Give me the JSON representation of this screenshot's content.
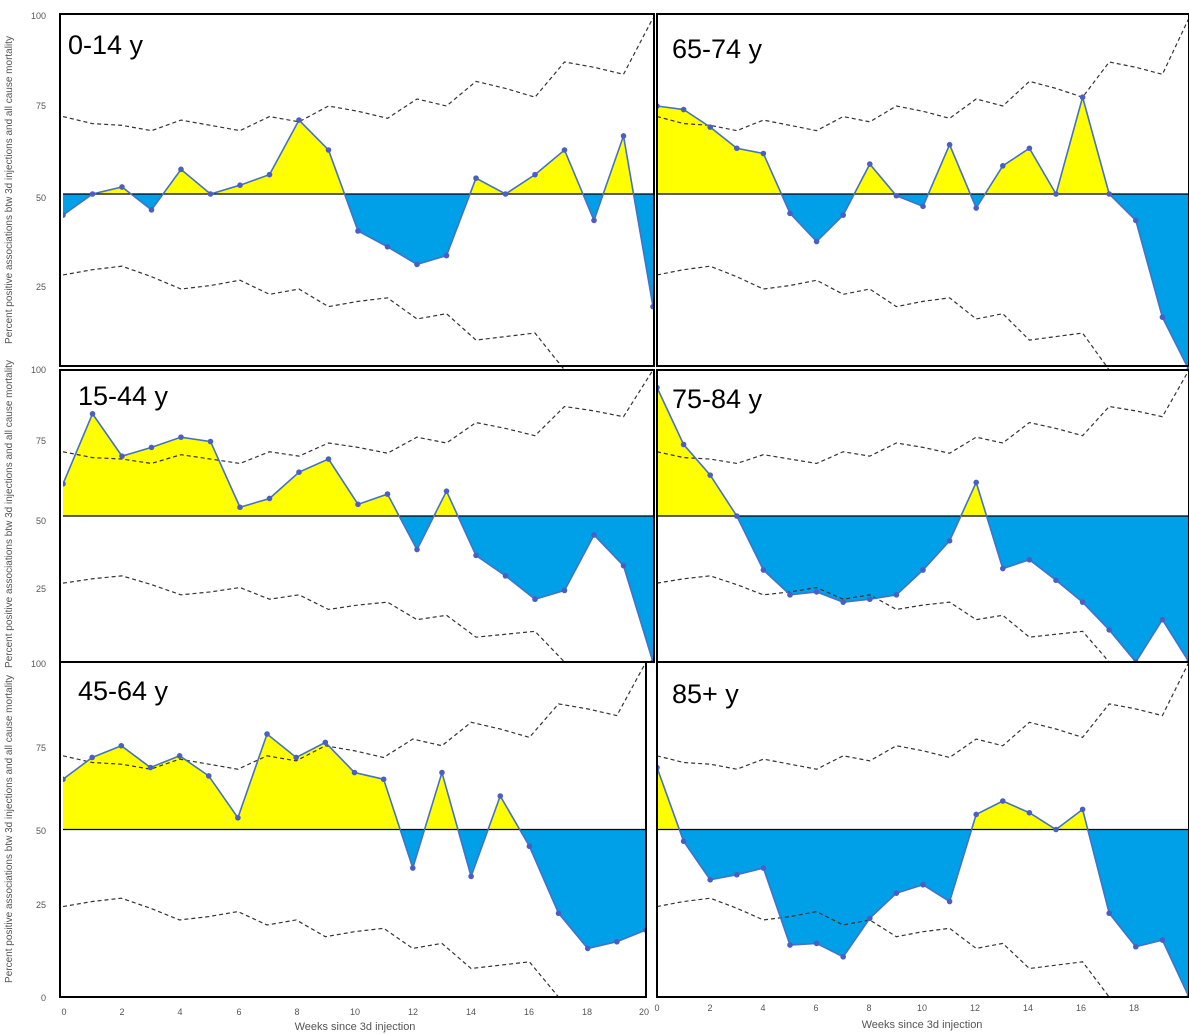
{
  "chart_data": {
    "type": "area",
    "ylabel": "Percent positive associations btw 3d injections and all cause mortality",
    "xlabel": "Weeks since 3d injection",
    "y_ticks": [
      "100",
      "75",
      "50",
      "25",
      "0"
    ],
    "x_ticks": [
      "0",
      "2",
      "4",
      "6",
      "8",
      "10",
      "12",
      "14",
      "16",
      "18",
      "20"
    ],
    "ylim": [
      0,
      100
    ],
    "xlim": [
      0,
      20
    ],
    "reference_line": 50,
    "colors": {
      "above": "#ffff00",
      "below": "#00a0e9",
      "line": "#4472c4",
      "point": "#4a5fc1",
      "band": "#333333",
      "frame": "#000000"
    },
    "confidence_band": {
      "upper": [
        [
          0,
          72
        ],
        [
          1,
          70
        ],
        [
          2,
          69.5
        ],
        [
          3,
          68
        ],
        [
          4,
          71
        ],
        [
          5,
          69.5
        ],
        [
          6,
          68
        ],
        [
          7,
          72
        ],
        [
          8,
          70.5
        ],
        [
          9,
          75
        ],
        [
          10,
          73.5
        ],
        [
          11,
          71.5
        ],
        [
          12,
          77
        ],
        [
          13,
          75
        ],
        [
          14,
          82
        ],
        [
          15,
          80
        ],
        [
          16,
          77.5
        ],
        [
          17,
          87.5
        ],
        [
          18,
          86
        ],
        [
          19,
          84
        ],
        [
          20,
          100
        ]
      ],
      "lower": [
        [
          0,
          27
        ],
        [
          1,
          28.5
        ],
        [
          2,
          29.5
        ],
        [
          3,
          26.5
        ],
        [
          4,
          23
        ],
        [
          5,
          24
        ],
        [
          6,
          25.5
        ],
        [
          7,
          21.5
        ],
        [
          8,
          23
        ],
        [
          9,
          18
        ],
        [
          10,
          19.5
        ],
        [
          11,
          20.5
        ],
        [
          12,
          14.5
        ],
        [
          13,
          16
        ],
        [
          14,
          8.5
        ],
        [
          15,
          9.5
        ],
        [
          16,
          10.5
        ],
        [
          17,
          0
        ],
        [
          18,
          0
        ],
        [
          19,
          0
        ],
        [
          20,
          0
        ]
      ]
    },
    "panels": [
      {
        "label": "0-14 y",
        "x": [
          0,
          1,
          2,
          3,
          4,
          5,
          6,
          7,
          8,
          9,
          10,
          11,
          12,
          13,
          14,
          15,
          16,
          17,
          18,
          19,
          20
        ],
        "y": [
          44,
          50,
          52,
          45.5,
          57,
          50,
          52.5,
          55.5,
          71,
          62.5,
          39.5,
          35,
          30,
          32.5,
          54.5,
          50,
          55.5,
          62.5,
          42.5,
          66.5,
          18
        ]
      },
      {
        "label": "65-74 y",
        "x": [
          0,
          1,
          2,
          3,
          4,
          5,
          6,
          7,
          8,
          9,
          10,
          11,
          12,
          13,
          14,
          15,
          16,
          17,
          18,
          19,
          20
        ],
        "y": [
          75,
          74,
          69,
          63,
          61.5,
          44.5,
          36.5,
          44,
          58.5,
          49.5,
          46.5,
          64,
          46,
          58,
          63,
          50,
          77.5,
          50,
          42.5,
          15,
          0
        ]
      },
      {
        "label": "15-44 y",
        "x": [
          0,
          1,
          2,
          3,
          4,
          5,
          6,
          7,
          8,
          9,
          10,
          11,
          12,
          13,
          14,
          15,
          16,
          17,
          18,
          19,
          20
        ],
        "y": [
          61,
          85,
          70.5,
          73.5,
          77,
          75.5,
          53,
          56,
          65,
          69.5,
          54,
          57.5,
          38.5,
          58.5,
          36.5,
          29.5,
          21.5,
          24.5,
          43.5,
          33,
          0
        ]
      },
      {
        "label": "75-84 y",
        "x": [
          0,
          1,
          2,
          3,
          4,
          5,
          6,
          7,
          8,
          9,
          10,
          11,
          12,
          13,
          14,
          15,
          16,
          17,
          18,
          19,
          20
        ],
        "y": [
          94,
          74.5,
          64,
          50,
          31.5,
          23,
          24,
          20.5,
          21.5,
          23,
          31.5,
          41.5,
          61.5,
          32,
          35,
          28,
          20.5,
          11,
          0,
          14.5,
          0
        ]
      },
      {
        "label": "45-64 y",
        "x": [
          0,
          1,
          2,
          3,
          4,
          5,
          6,
          7,
          8,
          9,
          10,
          11,
          12,
          13,
          14,
          15,
          16,
          17,
          18,
          19,
          20
        ],
        "y": [
          65,
          71.5,
          75,
          68.5,
          72,
          66,
          53.5,
          78.5,
          71.5,
          76,
          67,
          65,
          38.5,
          67,
          36,
          60,
          45,
          25,
          14.5,
          16.5,
          20
        ]
      },
      {
        "label": "85+ y",
        "x": [
          0,
          1,
          2,
          3,
          4,
          5,
          6,
          7,
          8,
          9,
          10,
          11,
          12,
          13,
          14,
          15,
          16,
          17,
          18,
          19,
          20
        ],
        "y": [
          68.5,
          46.5,
          35,
          36.5,
          38.5,
          15.5,
          16,
          12,
          23.5,
          31,
          33.5,
          28.5,
          54.5,
          58.5,
          55,
          50,
          56,
          25,
          15,
          17,
          0
        ]
      }
    ]
  }
}
